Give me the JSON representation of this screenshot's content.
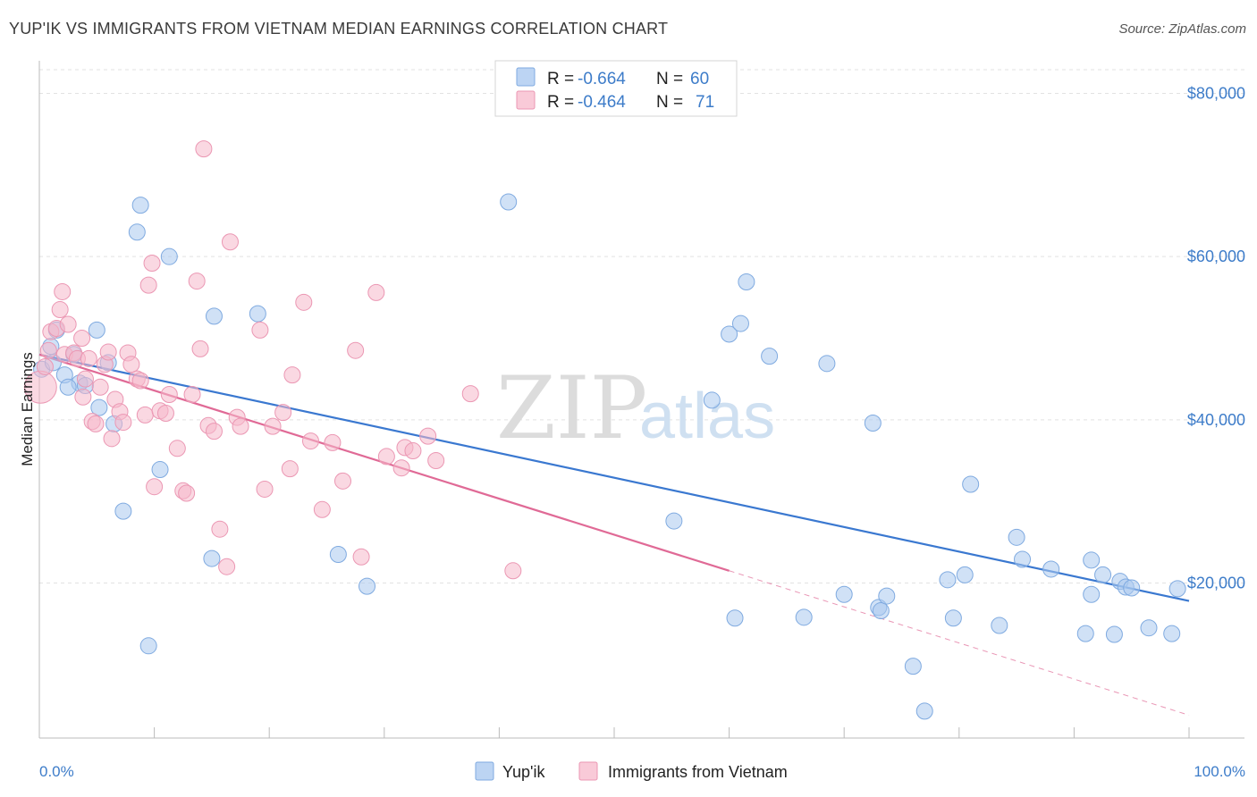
{
  "header": {
    "title": "YUP'IK VS IMMIGRANTS FROM VIETNAM MEDIAN EARNINGS CORRELATION CHART",
    "source": "Source: ZipAtlas.com"
  },
  "legend": {
    "r_label": "R =",
    "n_label": "N =",
    "rows": [
      {
        "r": "-0.664",
        "n": "60",
        "color": "#a9c8ef"
      },
      {
        "r": "-0.464",
        "n": "71",
        "color": "#f6b8ca"
      }
    ]
  },
  "watermark": {
    "zip": "ZIP",
    "atlas": "atlas"
  },
  "colors": {
    "blue": "#3a78d0",
    "pink": "#e06a96",
    "blue_fill": "#a9c8ef",
    "pink_fill": "#f6b8ca"
  },
  "chart_data": {
    "type": "scatter",
    "title": "YUP'IK VS IMMIGRANTS FROM VIETNAM MEDIAN EARNINGS CORRELATION CHART",
    "xlabel": "",
    "ylabel": "Median Earnings",
    "x_tick_labels": [
      "0.0%",
      "100.0%"
    ],
    "y_tick_labels": [
      "$20,000",
      "$40,000",
      "$60,000",
      "$80,000"
    ],
    "y_tick_values": [
      20000,
      40000,
      60000,
      80000
    ],
    "xlim": [
      0,
      100
    ],
    "ylim": [
      1000,
      84000
    ],
    "grid": true,
    "legend_position": "top-center",
    "series": [
      {
        "name": "Yup'ik",
        "color": "#a9c8ef",
        "trend": {
          "x0": 0,
          "y0": 48000,
          "x1": 100,
          "y1": 17800
        },
        "points": [
          [
            0.2,
            46200
          ],
          [
            1.0,
            49000
          ],
          [
            1.5,
            51000
          ],
          [
            2.2,
            45500
          ],
          [
            3.0,
            48000
          ],
          [
            3.5,
            44500
          ],
          [
            4.0,
            44200
          ],
          [
            5.0,
            51000
          ],
          [
            5.2,
            41500
          ],
          [
            6.0,
            47000
          ],
          [
            6.5,
            39500
          ],
          [
            7.3,
            28800
          ],
          [
            8.5,
            63000
          ],
          [
            8.8,
            66300
          ],
          [
            9.5,
            12300
          ],
          [
            10.5,
            33900
          ],
          [
            11.3,
            60000
          ],
          [
            15.2,
            52700
          ],
          [
            15.0,
            23000
          ],
          [
            19.0,
            53000
          ],
          [
            26.0,
            23500
          ],
          [
            28.5,
            19600
          ],
          [
            40.8,
            66700
          ],
          [
            55.2,
            27600
          ],
          [
            58.5,
            42400
          ],
          [
            60.5,
            15700
          ],
          [
            60.0,
            50500
          ],
          [
            61.0,
            51800
          ],
          [
            61.5,
            56900
          ],
          [
            63.5,
            47800
          ],
          [
            66.5,
            15800
          ],
          [
            68.5,
            46900
          ],
          [
            70.0,
            18600
          ],
          [
            72.5,
            39600
          ],
          [
            73.0,
            17000
          ],
          [
            73.2,
            16600
          ],
          [
            73.7,
            18400
          ],
          [
            76.0,
            9800
          ],
          [
            77.0,
            4300
          ],
          [
            79.0,
            20400
          ],
          [
            79.5,
            15700
          ],
          [
            80.5,
            21000
          ],
          [
            81.0,
            32100
          ],
          [
            83.5,
            14800
          ],
          [
            85.0,
            25600
          ],
          [
            85.5,
            22900
          ],
          [
            88.0,
            21700
          ],
          [
            91.0,
            13800
          ],
          [
            91.5,
            22800
          ],
          [
            91.5,
            18600
          ],
          [
            92.5,
            21000
          ],
          [
            93.5,
            13700
          ],
          [
            94.0,
            20200
          ],
          [
            94.5,
            19500
          ],
          [
            95.0,
            19400
          ],
          [
            96.5,
            14500
          ],
          [
            98.5,
            13800
          ],
          [
            99.0,
            19300
          ],
          [
            1.2,
            47000
          ],
          [
            2.5,
            44000
          ]
        ]
      },
      {
        "name": "Immigrants from Vietnam",
        "color": "#f6b8ca",
        "trend": {
          "x0": 0,
          "y0": 48000,
          "x1": 60,
          "y1": 21500,
          "dash_x1": 100,
          "dash_y1": 3800
        },
        "points": [
          [
            0.1,
            44000
          ],
          [
            0.5,
            46500
          ],
          [
            0.8,
            48500
          ],
          [
            1.0,
            50800
          ],
          [
            1.5,
            51200
          ],
          [
            1.8,
            53500
          ],
          [
            2.0,
            55700
          ],
          [
            2.2,
            48000
          ],
          [
            2.5,
            51700
          ],
          [
            3.0,
            48200
          ],
          [
            3.3,
            47500
          ],
          [
            3.7,
            50000
          ],
          [
            4.0,
            45000
          ],
          [
            4.3,
            47500
          ],
          [
            4.6,
            39800
          ],
          [
            4.9,
            39500
          ],
          [
            5.3,
            44000
          ],
          [
            5.7,
            46800
          ],
          [
            6.0,
            48300
          ],
          [
            6.3,
            37700
          ],
          [
            6.6,
            42500
          ],
          [
            7.0,
            41000
          ],
          [
            7.3,
            39700
          ],
          [
            7.7,
            48200
          ],
          [
            8.0,
            46800
          ],
          [
            8.5,
            45000
          ],
          [
            8.8,
            44800
          ],
          [
            9.2,
            40600
          ],
          [
            9.5,
            56500
          ],
          [
            9.8,
            59200
          ],
          [
            10.0,
            31800
          ],
          [
            10.5,
            41100
          ],
          [
            11.0,
            40800
          ],
          [
            11.3,
            43100
          ],
          [
            12.0,
            36500
          ],
          [
            12.5,
            31300
          ],
          [
            12.8,
            31000
          ],
          [
            13.3,
            43100
          ],
          [
            13.7,
            57000
          ],
          [
            14.0,
            48700
          ],
          [
            14.3,
            73200
          ],
          [
            14.7,
            39300
          ],
          [
            15.2,
            38600
          ],
          [
            15.7,
            26600
          ],
          [
            16.3,
            22000
          ],
          [
            16.6,
            61800
          ],
          [
            17.2,
            40300
          ],
          [
            17.5,
            39200
          ],
          [
            19.2,
            51000
          ],
          [
            19.6,
            31500
          ],
          [
            20.3,
            39200
          ],
          [
            21.2,
            40900
          ],
          [
            21.8,
            34000
          ],
          [
            22.0,
            45500
          ],
          [
            23.0,
            54400
          ],
          [
            23.6,
            37400
          ],
          [
            24.6,
            29000
          ],
          [
            25.5,
            37200
          ],
          [
            26.4,
            32500
          ],
          [
            27.5,
            48500
          ],
          [
            28.0,
            23200
          ],
          [
            29.3,
            55600
          ],
          [
            30.2,
            35500
          ],
          [
            31.5,
            34100
          ],
          [
            31.8,
            36600
          ],
          [
            32.5,
            36200
          ],
          [
            33.8,
            38000
          ],
          [
            34.5,
            35000
          ],
          [
            41.2,
            21500
          ],
          [
            37.5,
            43200
          ],
          [
            3.8,
            42800
          ]
        ]
      }
    ]
  }
}
